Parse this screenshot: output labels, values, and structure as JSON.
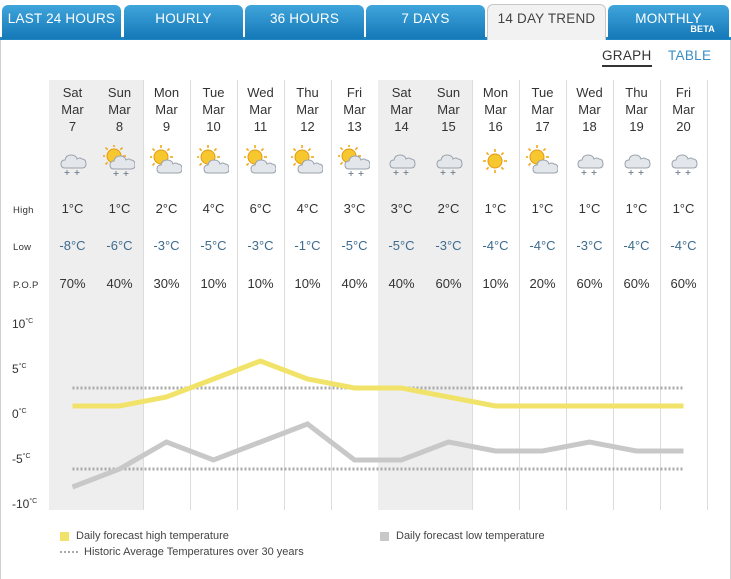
{
  "tabs": [
    {
      "label": "LAST 24 HOURS",
      "active": false
    },
    {
      "label": "HOURLY",
      "active": false
    },
    {
      "label": "36 HOURS",
      "active": false
    },
    {
      "label": "7 DAYS",
      "active": false
    },
    {
      "label": "14 DAY TREND",
      "active": true
    },
    {
      "label": "MONTHLY",
      "active": false,
      "badge": "BETA"
    }
  ],
  "view_toggle": {
    "graph": "GRAPH",
    "table": "TABLE",
    "selected": "graph"
  },
  "row_labels": {
    "high": "High",
    "low": "Low",
    "pop": "P.O.P"
  },
  "days": [
    {
      "dow": "Sat",
      "month": "Mar",
      "date": "7",
      "icon": "cloud-snow-icon",
      "high": "1°C",
      "low": "-8°C",
      "pop": "70%",
      "weekend": true
    },
    {
      "dow": "Sun",
      "month": "Mar",
      "date": "8",
      "icon": "sun-cloud-snow-icon",
      "high": "1°C",
      "low": "-6°C",
      "pop": "40%",
      "weekend": true
    },
    {
      "dow": "Mon",
      "month": "Mar",
      "date": "9",
      "icon": "sun-cloud-icon",
      "high": "2°C",
      "low": "-3°C",
      "pop": "30%",
      "weekend": false
    },
    {
      "dow": "Tue",
      "month": "Mar",
      "date": "10",
      "icon": "sun-cloud-icon",
      "high": "4°C",
      "low": "-5°C",
      "pop": "10%",
      "weekend": false
    },
    {
      "dow": "Wed",
      "month": "Mar",
      "date": "11",
      "icon": "sun-cloud-icon",
      "high": "6°C",
      "low": "-3°C",
      "pop": "10%",
      "weekend": false
    },
    {
      "dow": "Thu",
      "month": "Mar",
      "date": "12",
      "icon": "sun-cloud-icon",
      "high": "4°C",
      "low": "-1°C",
      "pop": "10%",
      "weekend": false
    },
    {
      "dow": "Fri",
      "month": "Mar",
      "date": "13",
      "icon": "sun-cloud-snow-icon",
      "high": "3°C",
      "low": "-5°C",
      "pop": "40%",
      "weekend": false
    },
    {
      "dow": "Sat",
      "month": "Mar",
      "date": "14",
      "icon": "cloud-snow-icon",
      "high": "3°C",
      "low": "-5°C",
      "pop": "40%",
      "weekend": true
    },
    {
      "dow": "Sun",
      "month": "Mar",
      "date": "15",
      "icon": "cloud-snow-icon",
      "high": "2°C",
      "low": "-3°C",
      "pop": "60%",
      "weekend": true
    },
    {
      "dow": "Mon",
      "month": "Mar",
      "date": "16",
      "icon": "sun-icon",
      "high": "1°C",
      "low": "-4°C",
      "pop": "10%",
      "weekend": false
    },
    {
      "dow": "Tue",
      "month": "Mar",
      "date": "17",
      "icon": "sun-cloud-icon",
      "high": "1°C",
      "low": "-4°C",
      "pop": "20%",
      "weekend": false
    },
    {
      "dow": "Wed",
      "month": "Mar",
      "date": "18",
      "icon": "cloud-snow-icon",
      "high": "1°C",
      "low": "-3°C",
      "pop": "60%",
      "weekend": false
    },
    {
      "dow": "Thu",
      "month": "Mar",
      "date": "19",
      "icon": "cloud-snow-icon",
      "high": "1°C",
      "low": "-4°C",
      "pop": "60%",
      "weekend": false
    },
    {
      "dow": "Fri",
      "month": "Mar",
      "date": "20",
      "icon": "cloud-snow-icon",
      "high": "1°C",
      "low": "-4°C",
      "pop": "60%",
      "weekend": false
    }
  ],
  "chart_data": {
    "type": "line",
    "categories": [
      "Mar 7",
      "Mar 8",
      "Mar 9",
      "Mar 10",
      "Mar 11",
      "Mar 12",
      "Mar 13",
      "Mar 14",
      "Mar 15",
      "Mar 16",
      "Mar 17",
      "Mar 18",
      "Mar 19",
      "Mar 20"
    ],
    "series": [
      {
        "name": "Daily forecast high temperature",
        "values": [
          1,
          1,
          2,
          4,
          6,
          4,
          3,
          3,
          2,
          1,
          1,
          1,
          1,
          1
        ],
        "color": "#f1e36a"
      },
      {
        "name": "Daily forecast low temperature",
        "values": [
          -8,
          -6,
          -3,
          -5,
          -3,
          -1,
          -5,
          -5,
          -3,
          -4,
          -4,
          -3,
          -4,
          -4
        ],
        "color": "#c8c8c8"
      }
    ],
    "average_lines": {
      "name": "Historic Average Temperatures over 30 years",
      "high": 3,
      "low": -6,
      "color": "#aaaaaa"
    },
    "yticks": [
      {
        "value": 10,
        "label": "10"
      },
      {
        "value": 5,
        "label": "5"
      },
      {
        "value": 0,
        "label": "0"
      },
      {
        "value": -5,
        "label": "-5"
      },
      {
        "value": -10,
        "label": "-10"
      }
    ],
    "yunit": "°C",
    "ylim": [
      -10,
      10
    ],
    "grid": false,
    "legend_placement": "bottom-left"
  },
  "colors": {
    "tab_blue": "#1f86c3",
    "low_text": "#3d6b8e",
    "link": "#3a8ec5"
  }
}
